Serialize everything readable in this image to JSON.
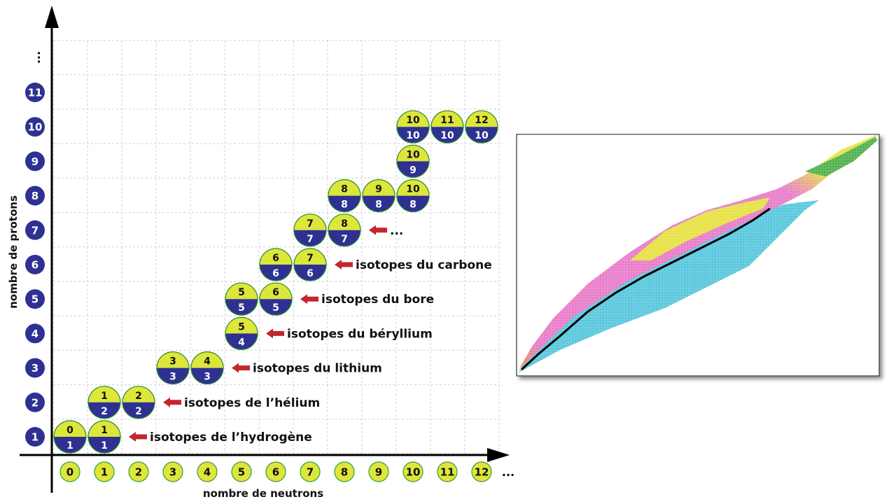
{
  "axes": {
    "x_title": "nombre de neutrons",
    "y_title": "nombre de protons",
    "x_ticks": [
      "0",
      "1",
      "2",
      "3",
      "4",
      "5",
      "6",
      "7",
      "8",
      "9",
      "10",
      "11",
      "12"
    ],
    "y_ticks": [
      "1",
      "2",
      "3",
      "4",
      "5",
      "6",
      "7",
      "8",
      "9",
      "10",
      "11"
    ],
    "x_ellipsis": "...",
    "y_ellipsis": "..."
  },
  "nuclides": [
    {
      "neutrons": 0,
      "protons": 1,
      "mass": "0",
      "z": "1"
    },
    {
      "neutrons": 1,
      "protons": 1,
      "mass": "1",
      "z": "1"
    },
    {
      "neutrons": 1,
      "protons": 2,
      "mass": "1",
      "z": "2"
    },
    {
      "neutrons": 2,
      "protons": 2,
      "mass": "2",
      "z": "2"
    },
    {
      "neutrons": 3,
      "protons": 3,
      "mass": "3",
      "z": "3"
    },
    {
      "neutrons": 4,
      "protons": 3,
      "mass": "4",
      "z": "3"
    },
    {
      "neutrons": 5,
      "protons": 4,
      "mass": "5",
      "z": "4"
    },
    {
      "neutrons": 5,
      "protons": 5,
      "mass": "5",
      "z": "5"
    },
    {
      "neutrons": 6,
      "protons": 5,
      "mass": "6",
      "z": "5"
    },
    {
      "neutrons": 6,
      "protons": 6,
      "mass": "6",
      "z": "6"
    },
    {
      "neutrons": 7,
      "protons": 6,
      "mass": "7",
      "z": "6"
    },
    {
      "neutrons": 7,
      "protons": 7,
      "mass": "7",
      "z": "7"
    },
    {
      "neutrons": 8,
      "protons": 7,
      "mass": "8",
      "z": "7"
    },
    {
      "neutrons": 8,
      "protons": 8,
      "mass": "8",
      "z": "8"
    },
    {
      "neutrons": 9,
      "protons": 8,
      "mass": "9",
      "z": "8"
    },
    {
      "neutrons": 10,
      "protons": 8,
      "mass": "10",
      "z": "8"
    },
    {
      "neutrons": 10,
      "protons": 9,
      "mass": "10",
      "z": "9"
    },
    {
      "neutrons": 10,
      "protons": 10,
      "mass": "10",
      "z": "10"
    },
    {
      "neutrons": 11,
      "protons": 10,
      "mass": "11",
      "z": "10"
    },
    {
      "neutrons": 12,
      "protons": 10,
      "mass": "12",
      "z": "10"
    }
  ],
  "labels": [
    {
      "protons": 1,
      "neutrons": 2,
      "text": "isotopes de l’hydrogène"
    },
    {
      "protons": 2,
      "neutrons": 3,
      "text": "isotopes de l’hélium"
    },
    {
      "protons": 3,
      "neutrons": 5,
      "text": "isotopes du lithium"
    },
    {
      "protons": 4,
      "neutrons": 6,
      "text": "isotopes du béryllium"
    },
    {
      "protons": 5,
      "neutrons": 7,
      "text": "isotopes du bore"
    },
    {
      "protons": 6,
      "neutrons": 8,
      "text": "isotopes du carbone"
    },
    {
      "protons": 7,
      "neutrons": 9,
      "text": "..."
    }
  ],
  "colors": {
    "yellow": "#dde63a",
    "navy": "#2e3192",
    "arrow": "#c1272d",
    "grid": "#cfcfcf"
  }
}
